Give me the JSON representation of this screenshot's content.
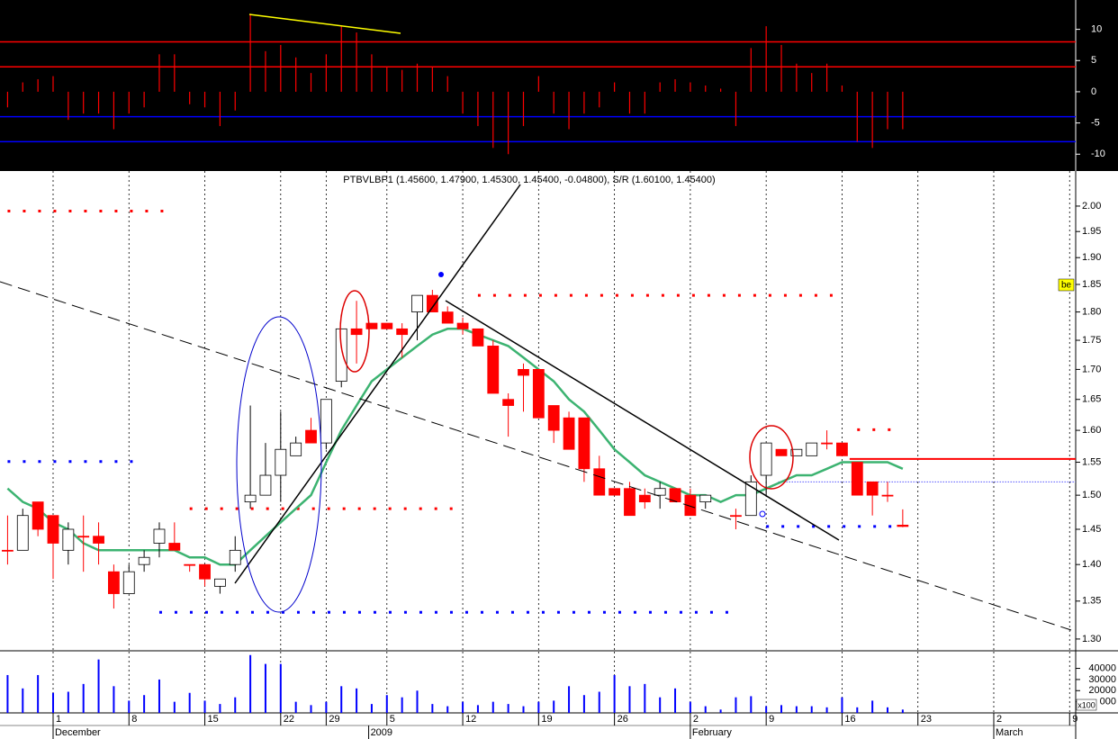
{
  "chart_data": [
    {
      "type": "bar",
      "color": "#ff0000",
      "x": [
        -3,
        -2,
        -1,
        0,
        1,
        2,
        3,
        4,
        5,
        6,
        7,
        8,
        9,
        10,
        11,
        12,
        13,
        14,
        15,
        16,
        17,
        18,
        19,
        20,
        21,
        22,
        23,
        24,
        25,
        26,
        27,
        28,
        29,
        30,
        31,
        32,
        33,
        34,
        35,
        36,
        37,
        38,
        39,
        40,
        41,
        42,
        43,
        44,
        45,
        46,
        47,
        48,
        49,
        50,
        51,
        52,
        53,
        54,
        55,
        56
      ],
      "values": [
        -2.5,
        1.5,
        2,
        2.5,
        -4.5,
        -3.5,
        -3.5,
        -6,
        -3.5,
        -2.5,
        6,
        6,
        -2,
        -2.5,
        -5.5,
        -3,
        12.5,
        6.5,
        7.5,
        5.5,
        3,
        6,
        10.5,
        9.5,
        6,
        4,
        3.5,
        4.5,
        4,
        2.5,
        -3.5,
        -5.5,
        -9,
        -10,
        -5.5,
        2.5,
        -3.5,
        -6,
        -3.5,
        -2.5,
        1.5,
        -3.5,
        -3.5,
        1.5,
        2,
        1.5,
        1,
        0.5,
        -5.5,
        7,
        10.5,
        7.5,
        4.5,
        3,
        4.5,
        1,
        -8,
        -9,
        -6,
        -6
      ],
      "ylim": [
        -12.7,
        14.7
      ],
      "yticks": [
        10,
        5,
        0,
        -5,
        -10
      ],
      "levels": [
        {
          "value": 8,
          "color": "#ff0000"
        },
        {
          "value": 4,
          "color": "#ff0000"
        },
        {
          "value": -4,
          "color": "#0000ff"
        },
        {
          "value": -8,
          "color": "#0000ff"
        }
      ]
    },
    {
      "type": "candlestick",
      "title": "PTBVLBP1 (1.45600, 1.47900, 1.45300, 1.45400, -0.04800), S/R (1.60100, 1.45400)",
      "x": [
        -3,
        -2,
        -1,
        0,
        1,
        2,
        3,
        4,
        5,
        6,
        7,
        8,
        9,
        10,
        11,
        12,
        13,
        14,
        15,
        16,
        17,
        18,
        19,
        20,
        21,
        22,
        23,
        24,
        25,
        26,
        27,
        28,
        29,
        30,
        31,
        32,
        33,
        34,
        35,
        36,
        37,
        38,
        39,
        40,
        41,
        42,
        43,
        44,
        45,
        46,
        47,
        48,
        49,
        50,
        51,
        52,
        53,
        54,
        55,
        56
      ],
      "open": [
        1.42,
        1.42,
        1.49,
        1.47,
        1.42,
        1.44,
        1.44,
        1.39,
        1.36,
        1.4,
        1.43,
        1.43,
        1.4,
        1.4,
        1.37,
        1.4,
        1.49,
        1.5,
        1.53,
        1.56,
        1.6,
        1.58,
        1.68,
        1.77,
        1.78,
        1.78,
        1.77,
        1.8,
        1.83,
        1.8,
        1.78,
        1.77,
        1.74,
        1.65,
        1.7,
        1.7,
        1.64,
        1.62,
        1.62,
        1.54,
        1.51,
        1.51,
        1.5,
        1.5,
        1.51,
        1.5,
        1.49,
        null,
        1.47,
        1.47,
        1.53,
        1.57,
        1.56,
        1.56,
        1.58,
        1.58,
        1.55,
        1.52,
        1.5,
        1.456
      ],
      "high": [
        1.47,
        1.48,
        1.49,
        1.47,
        1.46,
        1.47,
        1.46,
        1.4,
        1.4,
        1.42,
        1.46,
        1.46,
        1.4,
        1.4,
        1.38,
        1.44,
        1.64,
        1.58,
        1.63,
        1.59,
        1.62,
        1.65,
        1.77,
        1.82,
        1.78,
        1.78,
        1.78,
        1.83,
        1.84,
        1.81,
        1.79,
        1.77,
        1.75,
        1.66,
        1.71,
        1.7,
        1.64,
        1.63,
        1.62,
        1.56,
        1.51,
        1.52,
        1.51,
        1.52,
        1.51,
        1.51,
        1.5,
        null,
        1.48,
        1.53,
        1.58,
        1.57,
        1.57,
        1.58,
        1.6,
        1.58,
        1.55,
        1.52,
        1.52,
        1.479
      ],
      "low": [
        1.4,
        1.42,
        1.44,
        1.38,
        1.4,
        1.39,
        1.4,
        1.34,
        1.36,
        1.39,
        1.41,
        1.42,
        1.39,
        1.37,
        1.36,
        1.39,
        1.48,
        1.5,
        1.49,
        1.56,
        1.58,
        1.57,
        1.67,
        1.71,
        1.77,
        1.77,
        1.72,
        1.75,
        1.8,
        1.78,
        1.76,
        1.74,
        1.66,
        1.59,
        1.63,
        1.62,
        1.58,
        1.57,
        1.52,
        1.5,
        1.5,
        1.47,
        1.48,
        1.48,
        1.49,
        1.47,
        1.48,
        null,
        1.45,
        1.47,
        1.5,
        1.56,
        1.56,
        1.56,
        1.57,
        1.56,
        1.5,
        1.47,
        1.49,
        1.453
      ],
      "close": [
        1.42,
        1.47,
        1.45,
        1.43,
        1.45,
        1.44,
        1.43,
        1.36,
        1.39,
        1.41,
        1.45,
        1.42,
        1.4,
        1.38,
        1.38,
        1.42,
        1.5,
        1.53,
        1.57,
        1.58,
        1.58,
        1.65,
        1.77,
        1.76,
        1.77,
        1.77,
        1.76,
        1.83,
        1.8,
        1.78,
        1.77,
        1.74,
        1.66,
        1.64,
        1.69,
        1.62,
        1.6,
        1.57,
        1.54,
        1.5,
        1.5,
        1.47,
        1.49,
        1.51,
        1.49,
        1.47,
        1.5,
        null,
        1.47,
        1.52,
        1.58,
        1.56,
        1.57,
        1.58,
        1.58,
        1.56,
        1.5,
        1.5,
        1.5,
        1.454
      ],
      "up_color": "#ffffff",
      "down_color": "#ff0000",
      "ma": {
        "color": "#3cb371",
        "values": [
          1.51,
          1.49,
          1.48,
          1.46,
          1.45,
          1.43,
          1.42,
          1.42,
          1.42,
          1.42,
          1.42,
          1.42,
          1.41,
          1.41,
          1.4,
          1.4,
          1.42,
          1.44,
          1.46,
          1.48,
          1.5,
          1.55,
          1.6,
          1.64,
          1.68,
          1.7,
          1.72,
          1.74,
          1.76,
          1.77,
          1.77,
          1.76,
          1.75,
          1.74,
          1.72,
          1.7,
          1.68,
          1.65,
          1.63,
          1.6,
          1.57,
          1.55,
          1.53,
          1.52,
          1.51,
          1.5,
          1.5,
          1.49,
          1.5,
          1.5,
          1.51,
          1.52,
          1.53,
          1.53,
          1.54,
          1.55,
          1.55,
          1.55,
          1.55,
          1.54
        ]
      },
      "levels": [
        {
          "value": 1.99,
          "start": -3,
          "end": 8,
          "color": "#ff0000",
          "style": "dotted"
        },
        {
          "value": 1.83,
          "start": 28,
          "end": 52,
          "color": "#ff0000",
          "style": "dotted"
        },
        {
          "value": 1.48,
          "start": 9,
          "end": 27,
          "color": "#ff0000",
          "style": "dotted"
        },
        {
          "value": 1.601,
          "start": 53,
          "end": 56,
          "color": "#ff0000",
          "style": "dotted"
        },
        {
          "value": 1.555,
          "start": 52.5,
          "end": 67.4,
          "color": "#ff0000",
          "style": "solid"
        },
        {
          "value": 1.551,
          "start": -3,
          "end": 6,
          "color": "#0000ff",
          "style": "dotted"
        },
        {
          "value": 1.335,
          "start": 7,
          "end": 45,
          "color": "#0000ff",
          "style": "dotted"
        },
        {
          "value": 1.454,
          "start": 47,
          "end": 56,
          "color": "#0000ff",
          "style": "dotted"
        },
        {
          "value": 1.52,
          "start": 47.8,
          "end": 67.4,
          "color": "#0000ff",
          "style": "thin"
        }
      ],
      "log_scale": true,
      "grid": true,
      "xlim": [
        -3.5,
        67.4
      ],
      "xticks": [
        {
          "value": 0,
          "label": "1"
        },
        {
          "value": 5,
          "label": "8"
        },
        {
          "value": 10,
          "label": "15"
        },
        {
          "value": 15,
          "label": "22"
        },
        {
          "value": 18,
          "label": "29"
        },
        {
          "value": 22,
          "label": "5"
        },
        {
          "value": 27,
          "label": "12"
        },
        {
          "value": 32,
          "label": "19"
        },
        {
          "value": 37,
          "label": "26"
        },
        {
          "value": 42,
          "label": "2"
        },
        {
          "value": 47,
          "label": "9"
        },
        {
          "value": 52,
          "label": "16"
        },
        {
          "value": 57,
          "label": "23"
        },
        {
          "value": 62,
          "label": "2"
        },
        {
          "value": 67,
          "label": "9"
        }
      ],
      "months": [
        {
          "value": 0,
          "label": "December"
        },
        {
          "value": 20.8,
          "label": "2009"
        },
        {
          "value": 42,
          "label": "February"
        },
        {
          "value": 62,
          "label": "March"
        }
      ],
      "ylim": [
        1.286,
        2.071
      ],
      "yticks": [
        {
          "value": 2.0,
          "label": "2.00"
        },
        1.95,
        {
          "value": 1.9,
          "label": "1.90"
        },
        1.85,
        {
          "value": 1.8,
          "label": "1.80"
        },
        1.75,
        {
          "value": 1.7,
          "label": "1.70"
        },
        1.65,
        {
          "value": 1.6,
          "label": "1.60"
        },
        1.55,
        {
          "value": 1.5,
          "label": "1.50"
        },
        1.45,
        {
          "value": 1.4,
          "label": "1.40"
        },
        1.35,
        {
          "value": 1.3,
          "label": "1.30"
        }
      ],
      "marker_label": "be"
    },
    {
      "type": "bar",
      "color": "#0000ff",
      "x": [
        -3,
        -2,
        -1,
        0,
        1,
        2,
        3,
        4,
        5,
        6,
        7,
        8,
        9,
        10,
        11,
        12,
        13,
        14,
        15,
        16,
        17,
        18,
        19,
        20,
        21,
        22,
        23,
        24,
        25,
        26,
        27,
        28,
        29,
        30,
        31,
        32,
        33,
        34,
        35,
        36,
        37,
        38,
        39,
        40,
        41,
        42,
        43,
        44,
        45,
        46,
        47,
        48,
        49,
        50,
        51,
        52,
        53,
        54,
        55,
        56
      ],
      "values": [
        34000,
        22000,
        34000,
        18000,
        19000,
        26000,
        48000,
        24000,
        11000,
        16000,
        30000,
        10000,
        18000,
        11000,
        8000,
        14000,
        52000,
        44000,
        44000,
        10000,
        7000,
        10000,
        24000,
        22000,
        8000,
        16000,
        14000,
        20000,
        8000,
        6000,
        10000,
        7000,
        10000,
        8000,
        6000,
        10000,
        11000,
        24000,
        16000,
        19000,
        34000,
        24000,
        26000,
        14000,
        22000,
        10000,
        6000,
        3000,
        14000,
        15000,
        6000,
        7000,
        6000,
        6000,
        5000,
        14000,
        5000,
        11000,
        5000,
        3000
      ],
      "ylim": [
        0,
        55000
      ],
      "yticks": [
        40000,
        30000,
        20000,
        {
          "value": 10000,
          "label": "000"
        }
      ],
      "unit_label": "x100"
    }
  ]
}
